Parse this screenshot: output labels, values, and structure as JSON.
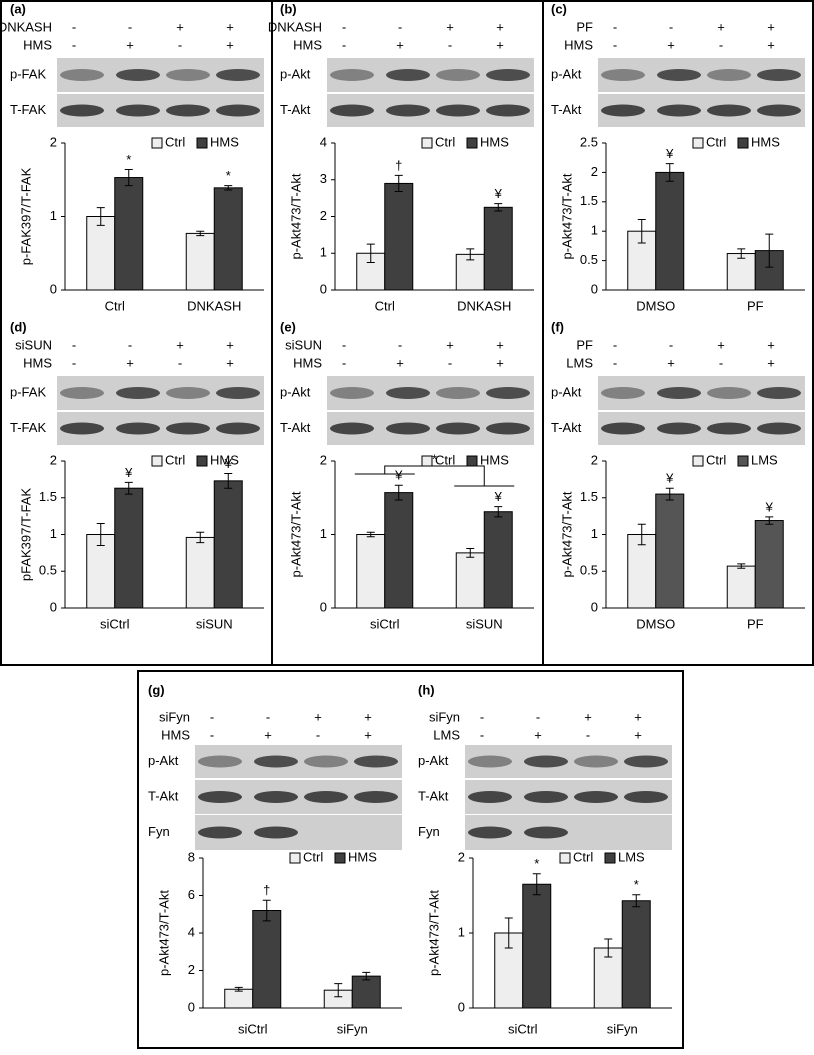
{
  "chart_data": [
    {
      "type": "bar",
      "panel": "(a)",
      "treatments": [
        {
          "name": "DNKASH",
          "signs": [
            "-",
            "-",
            "+",
            "+"
          ]
        },
        {
          "name": "HMS",
          "signs": [
            "-",
            "+",
            "-",
            "+"
          ]
        }
      ],
      "blots": [
        "p-FAK",
        "T-FAK"
      ],
      "ylabel": "p-FAK397/T-FAK",
      "categories": [
        "Ctrl",
        "DNKASH"
      ],
      "series": [
        {
          "name": "Ctrl",
          "color": "#eeeeee",
          "values": [
            1.0,
            0.77
          ],
          "errors": [
            0.12,
            0.03
          ]
        },
        {
          "name": "HMS",
          "color": "#404040",
          "values": [
            1.53,
            1.39
          ],
          "errors": [
            0.11,
            0.03
          ],
          "markers": [
            "*",
            "*"
          ]
        }
      ],
      "ylim": [
        0,
        2
      ],
      "yticks": [
        0,
        1,
        2
      ]
    },
    {
      "type": "bar",
      "panel": "(b)",
      "treatments": [
        {
          "name": "DNKASH",
          "signs": [
            "-",
            "-",
            "+",
            "+"
          ]
        },
        {
          "name": "HMS",
          "signs": [
            "-",
            "+",
            "-",
            "+"
          ]
        }
      ],
      "blots": [
        "p-Akt",
        "T-Akt"
      ],
      "ylabel": "p-Akt473/T-Akt",
      "categories": [
        "Ctrl",
        "DNKASH"
      ],
      "series": [
        {
          "name": "Ctrl",
          "color": "#eeeeee",
          "values": [
            1.0,
            0.97
          ],
          "errors": [
            0.25,
            0.15
          ]
        },
        {
          "name": "HMS",
          "color": "#404040",
          "values": [
            2.9,
            2.25
          ],
          "errors": [
            0.22,
            0.1
          ],
          "markers": [
            "†",
            "¥"
          ]
        }
      ],
      "ylim": [
        0,
        4
      ],
      "yticks": [
        0,
        1,
        2,
        3,
        4
      ]
    },
    {
      "type": "bar",
      "panel": "(c)",
      "treatments": [
        {
          "name": "PF",
          "signs": [
            "-",
            "-",
            "+",
            "+"
          ]
        },
        {
          "name": "HMS",
          "signs": [
            "-",
            "+",
            "-",
            "+"
          ]
        }
      ],
      "blots": [
        "p-Akt",
        "T-Akt"
      ],
      "ylabel": "p-Akt473/T-Akt",
      "categories": [
        "DMSO",
        "PF"
      ],
      "series": [
        {
          "name": "Ctrl",
          "color": "#eeeeee",
          "values": [
            1.0,
            0.62
          ],
          "errors": [
            0.2,
            0.08
          ]
        },
        {
          "name": "HMS",
          "color": "#404040",
          "values": [
            2.0,
            0.67
          ],
          "errors": [
            0.15,
            0.28
          ],
          "markers": [
            "¥",
            null
          ]
        }
      ],
      "ylim": [
        0,
        2.5
      ],
      "yticks": [
        0,
        0.5,
        1,
        1.5,
        2,
        2.5
      ]
    },
    {
      "type": "bar",
      "panel": "(d)",
      "treatments": [
        {
          "name": "siSUN",
          "signs": [
            "-",
            "-",
            "+",
            "+"
          ]
        },
        {
          "name": "HMS",
          "signs": [
            "-",
            "+",
            "-",
            "+"
          ]
        }
      ],
      "blots": [
        "p-FAK",
        "T-FAK"
      ],
      "ylabel": "pFAK397/T-FAK",
      "categories": [
        "siCtrl",
        "siSUN"
      ],
      "series": [
        {
          "name": "Ctrl",
          "color": "#eeeeee",
          "values": [
            1.0,
            0.96
          ],
          "errors": [
            0.15,
            0.07
          ]
        },
        {
          "name": "HMS",
          "color": "#404040",
          "values": [
            1.63,
            1.73
          ],
          "errors": [
            0.08,
            0.1
          ],
          "markers": [
            "¥",
            "¥"
          ]
        }
      ],
      "ylim": [
        0,
        2
      ],
      "yticks": [
        0,
        0.5,
        1,
        1.5,
        2
      ]
    },
    {
      "type": "bar",
      "panel": "(e)",
      "treatments": [
        {
          "name": "siSUN",
          "signs": [
            "-",
            "-",
            "+",
            "+"
          ]
        },
        {
          "name": "HMS",
          "signs": [
            "-",
            "+",
            "-",
            "+"
          ]
        }
      ],
      "blots": [
        "p-Akt",
        "T-Akt"
      ],
      "ylabel": "p-Akt473/T-Akt",
      "categories": [
        "siCtrl",
        "siSUN"
      ],
      "series": [
        {
          "name": "Ctrl",
          "color": "#eeeeee",
          "values": [
            1.0,
            0.75
          ],
          "errors": [
            0.03,
            0.06
          ]
        },
        {
          "name": "HMS",
          "color": "#404040",
          "values": [
            1.57,
            1.31
          ],
          "errors": [
            0.1,
            0.07
          ],
          "markers": [
            "¥",
            "¥"
          ]
        }
      ],
      "comparison": "*",
      "ylim": [
        0,
        2
      ],
      "yticks": [
        0,
        1,
        2
      ]
    },
    {
      "type": "bar",
      "panel": "(f)",
      "treatments": [
        {
          "name": "PF",
          "signs": [
            "-",
            "-",
            "+",
            "+"
          ]
        },
        {
          "name": "LMS",
          "signs": [
            "-",
            "+",
            "-",
            "+"
          ]
        }
      ],
      "blots": [
        "p-Akt",
        "T-Akt"
      ],
      "ylabel": "p-Akt473/T-Akt",
      "categories": [
        "DMSO",
        "PF"
      ],
      "series": [
        {
          "name": "Ctrl",
          "color": "#eeeeee",
          "values": [
            1.0,
            0.57
          ],
          "errors": [
            0.14,
            0.03
          ]
        },
        {
          "name": "LMS",
          "color": "#555555",
          "values": [
            1.55,
            1.19
          ],
          "errors": [
            0.08,
            0.05
          ],
          "markers": [
            "¥",
            "¥"
          ]
        }
      ],
      "ylim": [
        0,
        2
      ],
      "yticks": [
        0,
        0.5,
        1,
        1.5,
        2
      ]
    },
    {
      "type": "bar",
      "panel": "(g)",
      "treatments": [
        {
          "name": "siFyn",
          "signs": [
            "-",
            "-",
            "+",
            "+"
          ]
        },
        {
          "name": "HMS",
          "signs": [
            "-",
            "+",
            "-",
            "+"
          ]
        }
      ],
      "blots": [
        "p-Akt",
        "T-Akt",
        "Fyn"
      ],
      "ylabel": "p-Akt473/T-Akt",
      "categories": [
        "siCtrl",
        "siFyn"
      ],
      "series": [
        {
          "name": "Ctrl",
          "color": "#eeeeee",
          "values": [
            1.0,
            0.95
          ],
          "errors": [
            0.1,
            0.35
          ]
        },
        {
          "name": "HMS",
          "color": "#404040",
          "values": [
            5.2,
            1.7
          ],
          "errors": [
            0.55,
            0.2
          ],
          "markers": [
            "†",
            null
          ]
        }
      ],
      "ylim": [
        0,
        8
      ],
      "yticks": [
        0,
        2,
        4,
        6,
        8
      ]
    },
    {
      "type": "bar",
      "panel": "(h)",
      "treatments": [
        {
          "name": "siFyn",
          "signs": [
            "-",
            "-",
            "+",
            "+"
          ]
        },
        {
          "name": "LMS",
          "signs": [
            "-",
            "+",
            "-",
            "+"
          ]
        }
      ],
      "blots": [
        "p-Akt",
        "T-Akt",
        "Fyn"
      ],
      "ylabel": "p-Akt473/T-Akt",
      "categories": [
        "siCtrl",
        "siFyn"
      ],
      "series": [
        {
          "name": "Ctrl",
          "color": "#eeeeee",
          "values": [
            1.0,
            0.8
          ],
          "errors": [
            0.2,
            0.12
          ]
        },
        {
          "name": "LMS",
          "color": "#404040",
          "values": [
            1.65,
            1.43
          ],
          "errors": [
            0.14,
            0.08
          ],
          "markers": [
            "*",
            "*"
          ]
        }
      ],
      "ylim": [
        0,
        2
      ],
      "yticks": [
        0,
        1,
        2
      ]
    }
  ]
}
